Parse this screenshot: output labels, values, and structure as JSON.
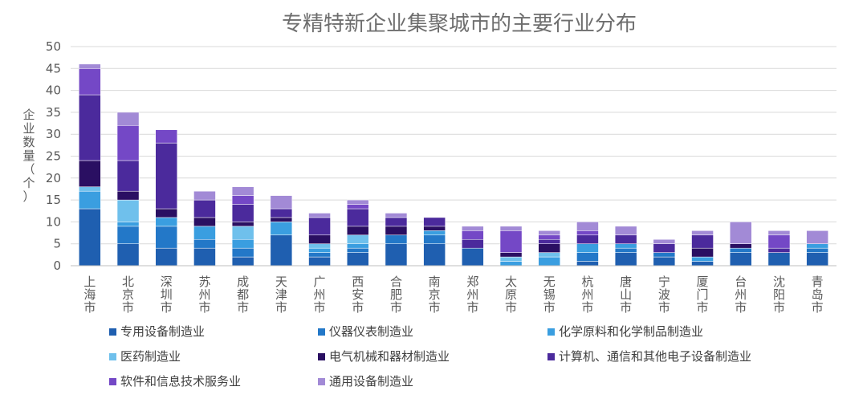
{
  "chart_data": {
    "type": "bar",
    "stacked": true,
    "title": "专精特新企业集聚城市的主要行业分布",
    "ylabel": "企业数量（个）",
    "xlabel": "",
    "ylim": [
      0,
      50
    ],
    "yticks": [
      0,
      5,
      10,
      15,
      20,
      25,
      30,
      35,
      40,
      45,
      50
    ],
    "grid": true,
    "legend_position": "bottom",
    "categories": [
      "上海市",
      "北京市",
      "深圳市",
      "苏州市",
      "成都市",
      "天津市",
      "广州市",
      "西安市",
      "合肥市",
      "南京市",
      "郑州市",
      "太原市",
      "无锡市",
      "杭州市",
      "唐山市",
      "宁波市",
      "厦门市",
      "台州市",
      "沈阳市",
      "青岛市"
    ],
    "series": [
      {
        "name": "专用设备制造业",
        "color": "#1f5fb0",
        "values": [
          13,
          5,
          4,
          4,
          2,
          7,
          2,
          3,
          5,
          5,
          4,
          0,
          0,
          1,
          3,
          2,
          1,
          3,
          3,
          3
        ]
      },
      {
        "name": "仪器仪表制造业",
        "color": "#2378c8",
        "values": [
          0,
          4,
          5,
          2,
          2,
          0,
          1,
          1,
          2,
          2,
          0,
          0,
          0,
          2,
          1,
          1,
          0,
          1,
          0,
          1
        ]
      },
      {
        "name": "化学原料和化学制品制造业",
        "color": "#3a9ee0",
        "values": [
          4,
          1,
          2,
          3,
          2,
          3,
          1,
          1,
          0,
          1,
          0,
          1,
          2,
          2,
          1,
          0,
          1,
          0,
          0,
          1
        ]
      },
      {
        "name": "医药制造业",
        "color": "#6fc0ec",
        "values": [
          1,
          5,
          0,
          0,
          3,
          0,
          1,
          2,
          0,
          0,
          0,
          1,
          1,
          0,
          0,
          0,
          0,
          0,
          0,
          0
        ]
      },
      {
        "name": "电气机械和器材制造业",
        "color": "#2a0f62",
        "values": [
          6,
          2,
          2,
          2,
          1,
          1,
          2,
          2,
          2,
          1,
          0,
          1,
          2,
          0,
          0,
          0,
          2,
          1,
          0,
          0
        ]
      },
      {
        "name": "计算机、通信和其他电子设备制造业",
        "color": "#4b2a9c",
        "values": [
          15,
          7,
          15,
          4,
          4,
          2,
          4,
          4,
          2,
          2,
          2,
          0,
          1,
          2,
          2,
          2,
          3,
          0,
          1,
          0
        ]
      },
      {
        "name": "软件和信息技术服务业",
        "color": "#7448c6",
        "values": [
          6,
          8,
          3,
          0,
          2,
          0,
          0,
          1,
          0,
          0,
          2,
          5,
          1,
          1,
          0,
          0,
          0,
          0,
          3,
          0
        ]
      },
      {
        "name": "通用设备制造业",
        "color": "#a28ad6",
        "values": [
          1,
          3,
          0,
          2,
          2,
          3,
          1,
          1,
          1,
          0,
          1,
          1,
          1,
          2,
          2,
          1,
          1,
          5,
          1,
          3
        ]
      }
    ]
  }
}
